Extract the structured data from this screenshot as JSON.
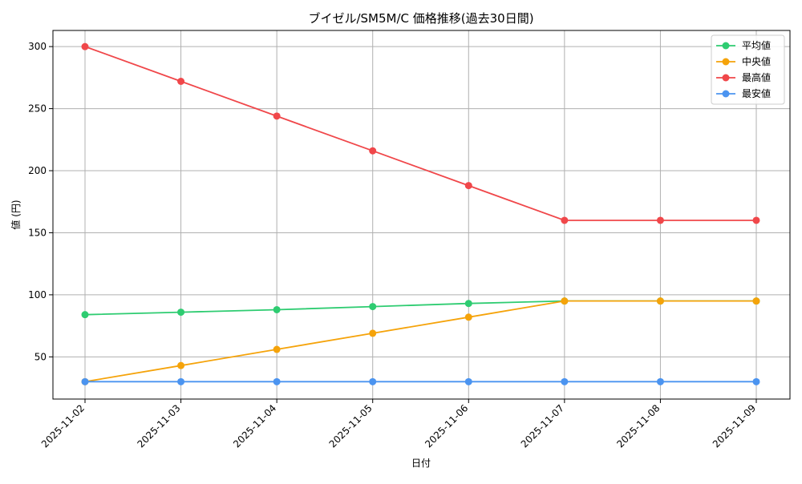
{
  "chart_data": {
    "type": "line",
    "title": "ブイゼル/SM5M/C 価格推移(過去30日間)",
    "xlabel": "日付",
    "ylabel": "値 (円)",
    "categories": [
      "2025-11-02",
      "2025-11-03",
      "2025-11-04",
      "2025-11-05",
      "2025-11-06",
      "2025-11-07",
      "2025-11-08",
      "2025-11-09"
    ],
    "ylim": [
      16,
      313
    ],
    "yticks": [
      50,
      100,
      150,
      200,
      250,
      300
    ],
    "grid": true,
    "legend_position": "top-right",
    "series": [
      {
        "name": "平均値",
        "color": "#2ecc71",
        "values": [
          84,
          86,
          88,
          90.5,
          93,
          95,
          95,
          95
        ]
      },
      {
        "name": "中央値",
        "color": "#f5a30a",
        "values": [
          30,
          43,
          56,
          69,
          82,
          95,
          95,
          95
        ]
      },
      {
        "name": "最高値",
        "color": "#f0474a",
        "values": [
          300,
          272,
          244,
          216,
          188,
          160,
          160,
          160
        ]
      },
      {
        "name": "最安値",
        "color": "#4b94f0",
        "values": [
          30,
          30,
          30,
          30,
          30,
          30,
          30,
          30
        ]
      }
    ]
  }
}
